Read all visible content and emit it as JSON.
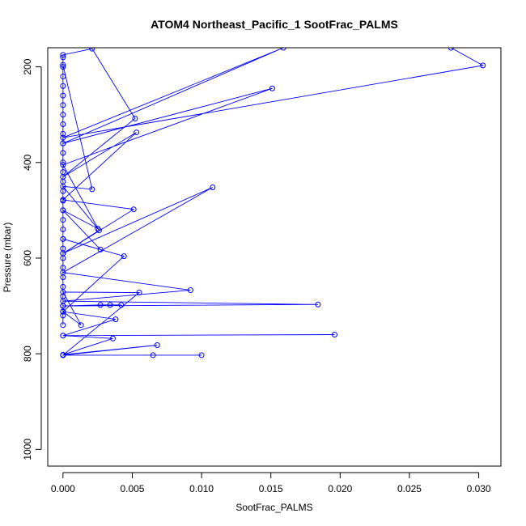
{
  "chart_data": {
    "type": "line",
    "title": "ATOM4 Northeast_Pacific_1 SootFrac_PALMS",
    "xlabel": "SootFrac_PALMS",
    "ylabel": "Pressure (mbar)",
    "xlim": [
      -0.0011,
      0.0316
    ],
    "ylim": [
      1035,
      160
    ],
    "y_reversed": true,
    "x_ticks": [
      0.0,
      0.005,
      0.01,
      0.015,
      0.02,
      0.025,
      0.03
    ],
    "x_tick_labels": [
      "0.000",
      "0.005",
      "0.010",
      "0.015",
      "0.020",
      "0.025",
      "0.030"
    ],
    "y_ticks": [
      200,
      400,
      600,
      800,
      1000
    ],
    "y_tick_labels": [
      "200",
      "400",
      "600",
      "800",
      "1000"
    ],
    "grid": false,
    "color": "#0000ff",
    "series": [
      {
        "points": [
          [
            0.0,
            740
          ],
          [
            0.0,
            720
          ],
          [
            0.0,
            700
          ],
          [
            0.0,
            680
          ],
          [
            0.0,
            660
          ],
          [
            0.0,
            640
          ],
          [
            0.0,
            620
          ],
          [
            0.0,
            600
          ],
          [
            0.0,
            580
          ],
          [
            0.0,
            560
          ],
          [
            0.0,
            540
          ],
          [
            0.0,
            520
          ],
          [
            0.0,
            500
          ],
          [
            0.0,
            480
          ],
          [
            0.0,
            460
          ],
          [
            0.0,
            440
          ],
          [
            0.0,
            420
          ],
          [
            0.0,
            400
          ],
          [
            0.0,
            380
          ],
          [
            0.0,
            360
          ],
          [
            0.0,
            340
          ],
          [
            0.0,
            320
          ],
          [
            0.0,
            300
          ],
          [
            0.0,
            280
          ],
          [
            0.0,
            260
          ],
          [
            0.0,
            240
          ],
          [
            0.0,
            220
          ],
          [
            0.0,
            200
          ],
          [
            0.0,
            180
          ],
          [
            0.0,
            175
          ],
          [
            0.0021,
            162
          ],
          [
            0.0052,
            308
          ],
          [
            0.0,
            430
          ],
          [
            0.0053,
            337
          ],
          [
            0.0,
            478
          ],
          [
            0.0051,
            498
          ],
          [
            0.0,
            590
          ],
          [
            0.0108,
            452
          ],
          [
            0.0,
            630
          ],
          [
            0.0092,
            667
          ],
          [
            0.0,
            690
          ],
          [
            0.0184,
            697
          ],
          [
            0.0,
            700
          ],
          [
            0.0027,
            698
          ],
          [
            0.0034,
            698
          ],
          [
            0.0042,
            698
          ],
          [
            0.0,
            700
          ],
          [
            0.0,
            712
          ],
          [
            0.0038,
            728
          ],
          [
            0.0,
            762
          ],
          [
            0.0196,
            760
          ],
          [
            0.0,
            762
          ],
          [
            0.0036,
            768
          ],
          [
            0.0,
            802
          ],
          [
            0.0068,
            782
          ],
          [
            0.0,
            803
          ],
          [
            0.0065,
            803
          ],
          [
            0.01,
            803
          ],
          [
            0.0,
            803
          ],
          [
            0.0055,
            672
          ],
          [
            0.0,
            671
          ],
          [
            0.0013,
            740
          ],
          [
            0.0,
            712
          ],
          [
            0.0044,
            596
          ],
          [
            0.0,
            560
          ],
          [
            0.0027,
            582
          ],
          [
            0.0,
            500
          ],
          [
            0.0025,
            538
          ],
          [
            0.0,
            450
          ],
          [
            0.0021,
            456
          ],
          [
            0.0,
            196
          ],
          [
            0.0,
            590
          ],
          [
            0.0026,
            542
          ],
          [
            0.0,
            405
          ],
          [
            0.0151,
            245
          ],
          [
            0.0,
            360
          ],
          [
            0.0159,
            160
          ],
          [
            0.0,
            348
          ],
          [
            0.0303,
            197
          ],
          [
            0.028,
            160
          ]
        ]
      }
    ]
  }
}
